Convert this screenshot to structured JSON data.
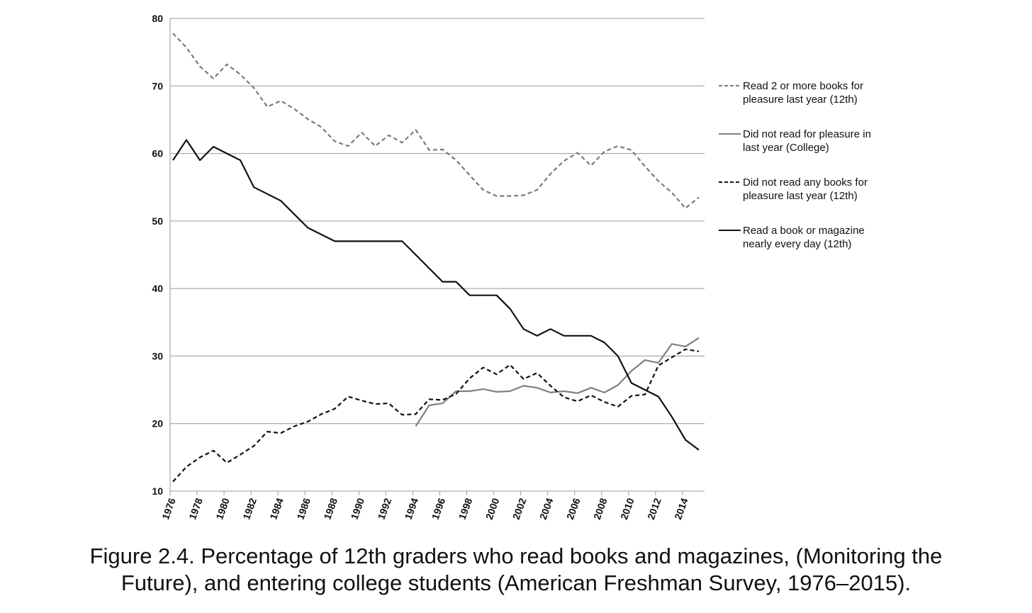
{
  "chart_data": {
    "type": "line",
    "title": "",
    "xlabel": "",
    "ylabel": "",
    "xlim": [
      1976,
      2015
    ],
    "ylim": [
      10,
      80
    ],
    "y_ticks": [
      10,
      20,
      30,
      40,
      50,
      60,
      70,
      80
    ],
    "x_tick_labels": [
      "1976",
      "1978",
      "1980",
      "1982",
      "1984",
      "1986",
      "1988",
      "1990",
      "1992",
      "1994",
      "1996",
      "1998",
      "2000",
      "2002",
      "2004",
      "2006",
      "2008",
      "2010",
      "2012",
      "2014"
    ],
    "grid": "horizontal",
    "legend_position": "right",
    "series": [
      {
        "name": "Read 2 or more books for pleasure last year (12th)",
        "legend_lines": [
          "Read 2 or more books for",
          "pleasure last year (12th)"
        ],
        "style": "dashed",
        "color": "#7a7a7a",
        "points": [
          [
            1976,
            77.8
          ],
          [
            1977,
            75.7
          ],
          [
            1978,
            72.9
          ],
          [
            1979,
            71.1
          ],
          [
            1980,
            73.2
          ],
          [
            1981,
            71.7
          ],
          [
            1982,
            69.7
          ],
          [
            1983,
            66.9
          ],
          [
            1984,
            67.8
          ],
          [
            1985,
            66.6
          ],
          [
            1986,
            65.1
          ],
          [
            1987,
            63.9
          ],
          [
            1988,
            61.8
          ],
          [
            1989,
            61.1
          ],
          [
            1990,
            63.1
          ],
          [
            1991,
            61.1
          ],
          [
            1992,
            62.7
          ],
          [
            1993,
            61.6
          ],
          [
            1994,
            63.5
          ],
          [
            1995,
            60.5
          ],
          [
            1996,
            60.6
          ],
          [
            1997,
            59.0
          ],
          [
            1998,
            56.8
          ],
          [
            1999,
            54.6
          ],
          [
            2000,
            53.7
          ],
          [
            2001,
            53.7
          ],
          [
            2002,
            53.8
          ],
          [
            2003,
            54.6
          ],
          [
            2004,
            57.0
          ],
          [
            2005,
            58.9
          ],
          [
            2006,
            60.1
          ],
          [
            2007,
            58.2
          ],
          [
            2008,
            60.3
          ],
          [
            2009,
            61.1
          ],
          [
            2010,
            60.5
          ],
          [
            2011,
            58.1
          ],
          [
            2012,
            55.9
          ],
          [
            2013,
            54.2
          ],
          [
            2014,
            51.9
          ],
          [
            2015,
            53.5
          ]
        ]
      },
      {
        "name": "Did not read for pleasure in last year (College)",
        "legend_lines": [
          "Did not read for pleasure in",
          "last year (College)"
        ],
        "style": "solid",
        "color": "#808080",
        "points": [
          [
            1994,
            19.6
          ],
          [
            1995,
            22.7
          ],
          [
            1996,
            23.0
          ],
          [
            1997,
            24.8
          ],
          [
            1998,
            24.8
          ],
          [
            1999,
            25.1
          ],
          [
            2000,
            24.7
          ],
          [
            2001,
            24.8
          ],
          [
            2002,
            25.6
          ],
          [
            2003,
            25.3
          ],
          [
            2004,
            24.6
          ],
          [
            2005,
            24.8
          ],
          [
            2006,
            24.5
          ],
          [
            2007,
            25.3
          ],
          [
            2008,
            24.6
          ],
          [
            2009,
            25.7
          ],
          [
            2010,
            27.8
          ],
          [
            2011,
            29.4
          ],
          [
            2012,
            29.0
          ],
          [
            2013,
            31.8
          ],
          [
            2014,
            31.4
          ],
          [
            2015,
            32.7
          ]
        ]
      },
      {
        "name": "Did not read any books for pleasure last year (12th)",
        "legend_lines": [
          "Did not read any books for",
          "pleasure last year (12th)"
        ],
        "style": "dashed",
        "color": "#111111",
        "points": [
          [
            1976,
            11.4
          ],
          [
            1977,
            13.6
          ],
          [
            1978,
            15.0
          ],
          [
            1979,
            16.0
          ],
          [
            1980,
            14.2
          ],
          [
            1981,
            15.4
          ],
          [
            1982,
            16.7
          ],
          [
            1983,
            18.8
          ],
          [
            1984,
            18.6
          ],
          [
            1985,
            19.6
          ],
          [
            1986,
            20.3
          ],
          [
            1987,
            21.4
          ],
          [
            1988,
            22.2
          ],
          [
            1989,
            24.0
          ],
          [
            1990,
            23.4
          ],
          [
            1991,
            22.9
          ],
          [
            1992,
            23.0
          ],
          [
            1993,
            21.3
          ],
          [
            1994,
            21.4
          ],
          [
            1995,
            23.6
          ],
          [
            1996,
            23.5
          ],
          [
            1997,
            24.4
          ],
          [
            1998,
            26.7
          ],
          [
            1999,
            28.3
          ],
          [
            2000,
            27.3
          ],
          [
            2001,
            28.7
          ],
          [
            2002,
            26.6
          ],
          [
            2003,
            27.5
          ],
          [
            2004,
            25.6
          ],
          [
            2005,
            23.9
          ],
          [
            2006,
            23.3
          ],
          [
            2007,
            24.2
          ],
          [
            2008,
            23.2
          ],
          [
            2009,
            22.5
          ],
          [
            2010,
            24.1
          ],
          [
            2011,
            24.3
          ],
          [
            2012,
            28.6
          ],
          [
            2013,
            29.8
          ],
          [
            2014,
            31.0
          ],
          [
            2015,
            30.7
          ]
        ]
      },
      {
        "name": "Read a book or magazine nearly every day (12th)",
        "legend_lines": [
          "Read a book or magazine",
          "nearly every day (12th)"
        ],
        "style": "solid",
        "color": "#111111",
        "points": [
          [
            1976,
            59
          ],
          [
            1977,
            62
          ],
          [
            1978,
            59
          ],
          [
            1979,
            61
          ],
          [
            1980,
            60
          ],
          [
            1981,
            59
          ],
          [
            1982,
            55
          ],
          [
            1983,
            54
          ],
          [
            1984,
            53
          ],
          [
            1985,
            51
          ],
          [
            1986,
            49
          ],
          [
            1987,
            48
          ],
          [
            1988,
            47
          ],
          [
            1989,
            47
          ],
          [
            1990,
            47
          ],
          [
            1991,
            47
          ],
          [
            1992,
            47
          ],
          [
            1993,
            47
          ],
          [
            1994,
            45
          ],
          [
            1995,
            43
          ],
          [
            1996,
            41
          ],
          [
            1997,
            41
          ],
          [
            1998,
            39
          ],
          [
            1999,
            39
          ],
          [
            2000,
            39
          ],
          [
            2001,
            37
          ],
          [
            2002,
            34
          ],
          [
            2003,
            33
          ],
          [
            2004,
            34
          ],
          [
            2005,
            33
          ],
          [
            2006,
            33
          ],
          [
            2007,
            33
          ],
          [
            2008,
            32
          ],
          [
            2009,
            30
          ],
          [
            2010,
            26
          ],
          [
            2011,
            25
          ],
          [
            2012,
            24
          ],
          [
            2013,
            21
          ],
          [
            2014,
            17.6
          ],
          [
            2015,
            16.1
          ]
        ]
      }
    ]
  },
  "caption": {
    "line1": "Figure 2.4. Percentage of 12th graders who read books and magazines, (Monitoring the",
    "line2": "Future), and entering college students (American Freshman Survey, 1976–2015)."
  }
}
